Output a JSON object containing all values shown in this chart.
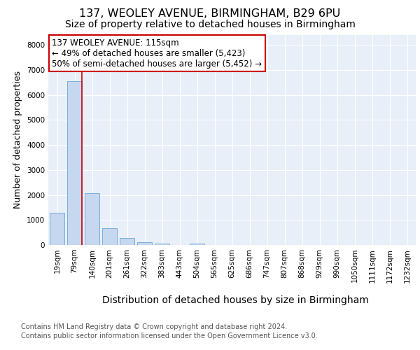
{
  "title_line1": "137, WEOLEY AVENUE, BIRMINGHAM, B29 6PU",
  "title_line2": "Size of property relative to detached houses in Birmingham",
  "xlabel": "Distribution of detached houses by size in Birmingham",
  "ylabel": "Number of detached properties",
  "categories": [
    "19sqm",
    "79sqm",
    "140sqm",
    "201sqm",
    "261sqm",
    "322sqm",
    "383sqm",
    "443sqm",
    "504sqm",
    "565sqm",
    "625sqm",
    "686sqm",
    "747sqm",
    "807sqm",
    "868sqm",
    "929sqm",
    "990sqm",
    "1050sqm",
    "1111sqm",
    "1172sqm",
    "1232sqm"
  ],
  "values": [
    1300,
    6550,
    2080,
    680,
    290,
    120,
    60,
    0,
    60,
    0,
    0,
    0,
    0,
    0,
    0,
    0,
    0,
    0,
    0,
    0,
    0
  ],
  "bar_color": "#c5d8f0",
  "bar_edge_color": "#7badd4",
  "vline_color": "#cc0000",
  "annotation_text": "137 WEOLEY AVENUE: 115sqm\n← 49% of detached houses are smaller (5,423)\n50% of semi-detached houses are larger (5,452) →",
  "annotation_box_color": "#ffffff",
  "annotation_box_edge_color": "#cc0000",
  "ylim": [
    0,
    8400
  ],
  "yticks": [
    0,
    1000,
    2000,
    3000,
    4000,
    5000,
    6000,
    7000,
    8000
  ],
  "bg_color": "#e8eff8",
  "fig_bg_color": "#ffffff",
  "footer_line1": "Contains HM Land Registry data © Crown copyright and database right 2024.",
  "footer_line2": "Contains public sector information licensed under the Open Government Licence v3.0.",
  "title_fontsize": 11.5,
  "subtitle_fontsize": 10,
  "xlabel_fontsize": 10,
  "ylabel_fontsize": 9,
  "tick_fontsize": 7.5,
  "annotation_fontsize": 8.5,
  "footer_fontsize": 7
}
